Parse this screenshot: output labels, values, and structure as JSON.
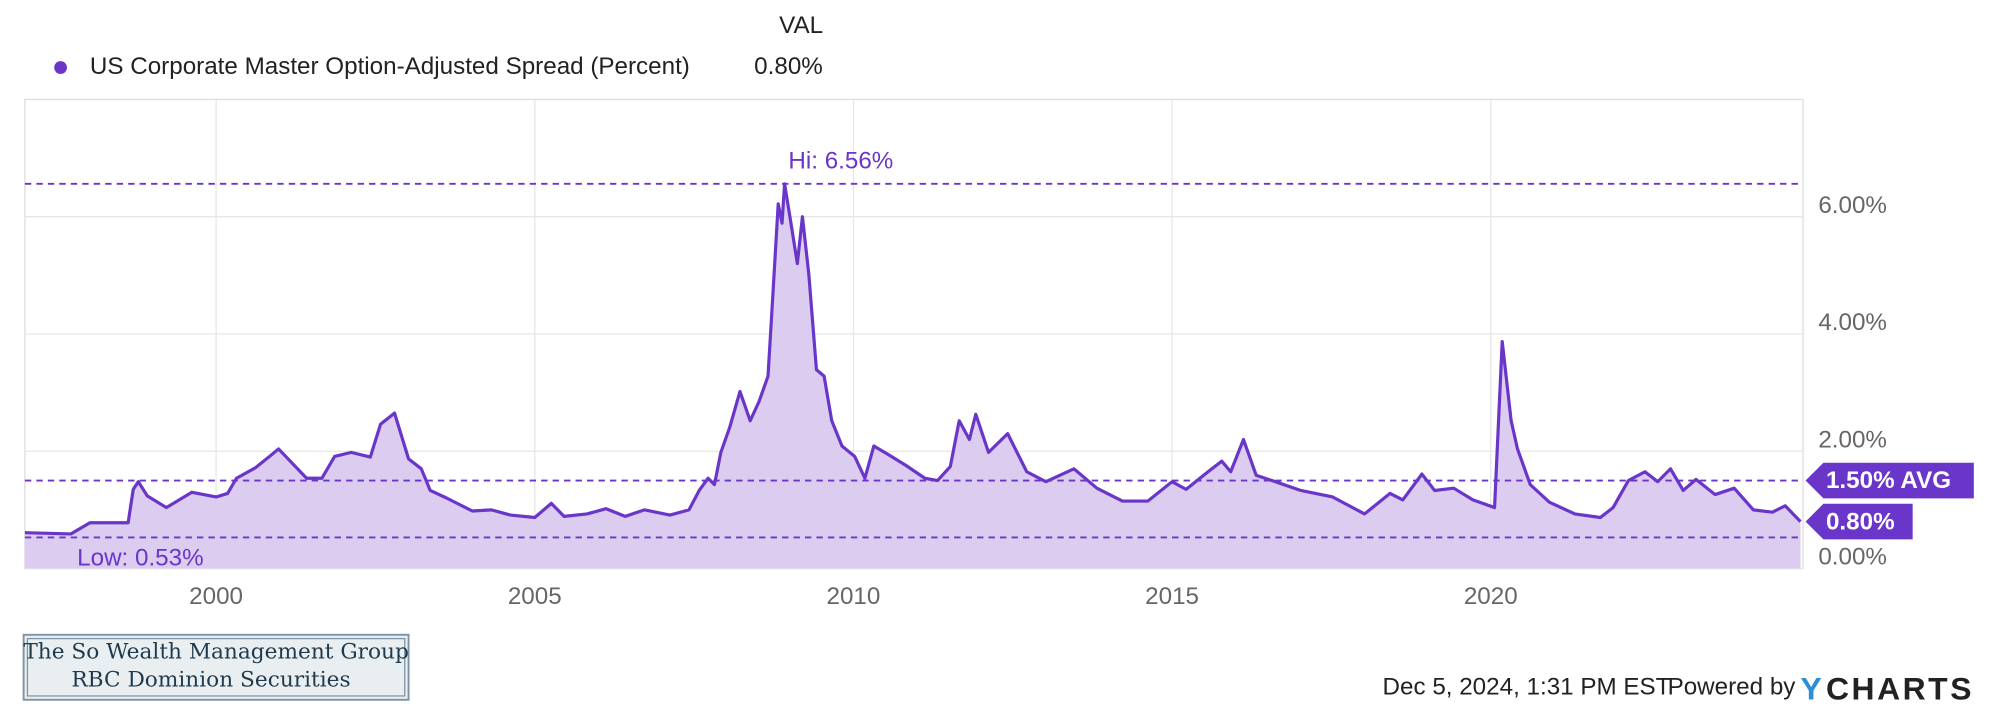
{
  "chart_data": {
    "type": "area",
    "legend_header": "VAL",
    "x": [
      1997.0,
      1997.72,
      1998.02,
      1998.62,
      1998.7,
      1998.78,
      1998.92,
      1999.22,
      1999.62,
      2000.0,
      2000.18,
      2000.32,
      2000.62,
      2000.86,
      2000.98,
      2001.42,
      2001.66,
      2001.86,
      2002.12,
      2002.42,
      2002.58,
      2002.8,
      2003.02,
      2003.22,
      2003.36,
      2003.62,
      2004.02,
      2004.32,
      2004.62,
      2005.0,
      2005.26,
      2005.46,
      2005.82,
      2006.12,
      2006.42,
      2006.72,
      2007.12,
      2007.42,
      2007.58,
      2007.72,
      2007.82,
      2007.92,
      2008.06,
      2008.22,
      2008.38,
      2008.52,
      2008.66,
      2008.72,
      2008.82,
      2008.88,
      2008.92,
      2009.02,
      2009.12,
      2009.2,
      2009.3,
      2009.42,
      2009.54,
      2009.66,
      2009.82,
      2010.02,
      2010.18,
      2010.32,
      2010.52,
      2010.82,
      2011.12,
      2011.32,
      2011.52,
      2011.66,
      2011.82,
      2011.92,
      2012.12,
      2012.42,
      2012.72,
      2013.02,
      2013.46,
      2013.82,
      2014.22,
      2014.62,
      2015.0,
      2015.22,
      2015.52,
      2015.78,
      2015.92,
      2016.12,
      2016.32,
      2016.62,
      2017.02,
      2017.52,
      2018.02,
      2018.42,
      2018.62,
      2018.92,
      2019.12,
      2019.42,
      2019.72,
      2020.06,
      2020.18,
      2020.32,
      2020.42,
      2020.62,
      2020.92,
      2021.32,
      2021.72,
      2021.92,
      2022.16,
      2022.42,
      2022.62,
      2022.82,
      2023.02,
      2023.22,
      2023.52,
      2023.82,
      2024.12,
      2024.42,
      2024.62,
      2024.86
    ],
    "series": [
      {
        "name": "US Corporate Master Option-Adjusted Spread (Percent)",
        "color": "#6a35c9",
        "fill": "#dccdf0",
        "values": [
          0.61,
          0.59,
          0.78,
          0.78,
          1.35,
          1.48,
          1.24,
          1.04,
          1.3,
          1.22,
          1.28,
          1.54,
          1.72,
          1.93,
          2.04,
          1.54,
          1.54,
          1.91,
          1.98,
          1.9,
          2.46,
          2.65,
          1.87,
          1.7,
          1.33,
          1.2,
          0.98,
          1.0,
          0.91,
          0.87,
          1.11,
          0.89,
          0.93,
          1.02,
          0.89,
          1.0,
          0.91,
          1.0,
          1.33,
          1.54,
          1.43,
          1.98,
          2.41,
          3.02,
          2.52,
          2.85,
          3.28,
          4.37,
          6.22,
          5.89,
          6.56,
          5.89,
          5.2,
          6.0,
          5.02,
          3.39,
          3.28,
          2.52,
          2.09,
          1.91,
          1.54,
          2.09,
          1.96,
          1.76,
          1.54,
          1.5,
          1.74,
          2.52,
          2.2,
          2.63,
          1.98,
          2.3,
          1.65,
          1.48,
          1.7,
          1.37,
          1.15,
          1.15,
          1.48,
          1.35,
          1.61,
          1.83,
          1.65,
          2.2,
          1.59,
          1.48,
          1.33,
          1.22,
          0.93,
          1.28,
          1.17,
          1.61,
          1.33,
          1.37,
          1.17,
          1.04,
          3.87,
          2.52,
          2.04,
          1.43,
          1.13,
          0.93,
          0.87,
          1.04,
          1.5,
          1.65,
          1.48,
          1.7,
          1.33,
          1.52,
          1.26,
          1.37,
          1.0,
          0.96,
          1.07,
          0.8
        ]
      }
    ],
    "hi": {
      "value": 6.56,
      "label": "Hi: 6.56%"
    },
    "low": {
      "value": 0.53,
      "label": "Low: 0.53%"
    },
    "average": {
      "value": 1.5,
      "label": "1.50% AVG"
    },
    "last": {
      "value": 0.8,
      "label": "0.80%"
    },
    "xlim": [
      1997.0,
      2024.9
    ],
    "xticks": [
      2000,
      2005,
      2010,
      2015,
      2020
    ],
    "ylim": [
      0,
      8
    ],
    "yticks": [
      {
        "value": 0,
        "label": "0.00%"
      },
      {
        "value": 2,
        "label": "2.00%"
      },
      {
        "value": 4,
        "label": "4.00%"
      },
      {
        "value": 6,
        "label": "6.00%"
      }
    ],
    "grid": true
  },
  "watermark": {
    "line1": "The So Wealth Management Group",
    "line2": "RBC Dominion Securities"
  },
  "footer": {
    "timestamp": "Dec 5, 2024, 1:31 PM EST",
    "powered_by": "Powered by",
    "brand_y": "Y",
    "brand_rest": "CHARTS"
  }
}
